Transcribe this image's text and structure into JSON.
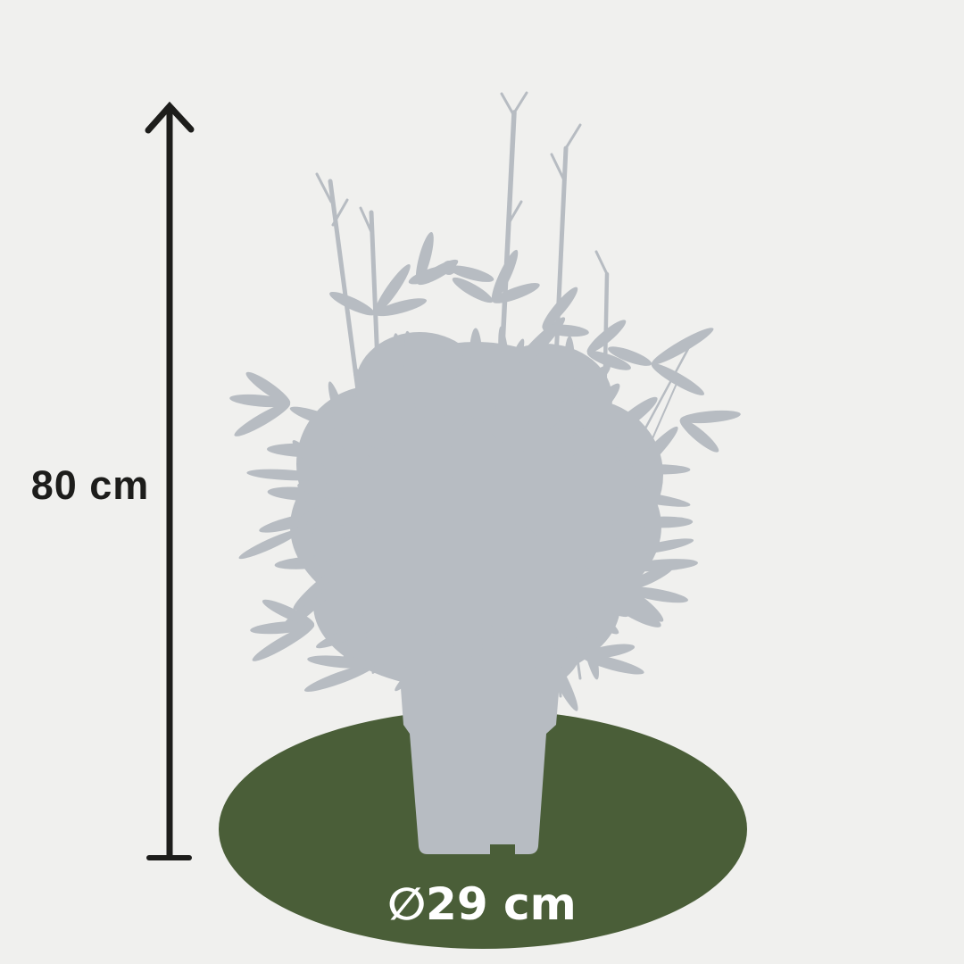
{
  "figure": {
    "type": "plant-dimension-diagram",
    "height_label": "80 cm",
    "diameter_label": "∅29 cm"
  },
  "colors": {
    "background": "#f0f0ee",
    "plant_silhouette": "#b7bcc2",
    "shadow_ellipse": "#4a5e38",
    "arrow": "#1d1d1b",
    "height_text": "#1d1d1b",
    "diameter_text": "#ffffff"
  }
}
